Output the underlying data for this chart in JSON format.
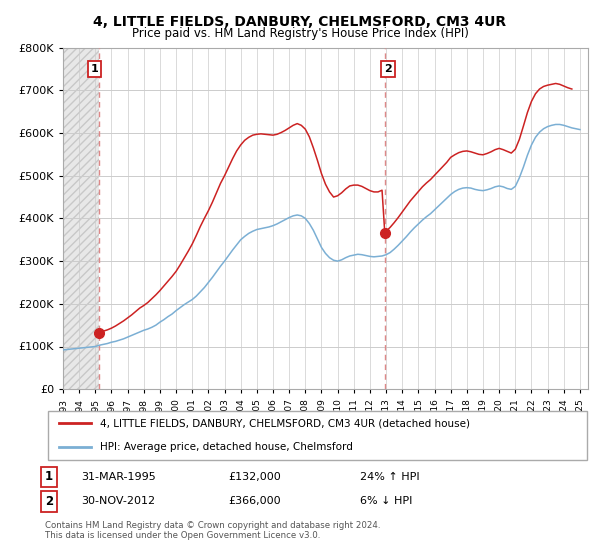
{
  "title": "4, LITTLE FIELDS, DANBURY, CHELMSFORD, CM3 4UR",
  "subtitle": "Price paid vs. HM Land Registry's House Price Index (HPI)",
  "ylim": [
    0,
    800000
  ],
  "yticks": [
    0,
    100000,
    200000,
    300000,
    400000,
    500000,
    600000,
    700000,
    800000
  ],
  "ytick_labels": [
    "£0",
    "£100K",
    "£200K",
    "£300K",
    "£400K",
    "£500K",
    "£600K",
    "£700K",
    "£800K"
  ],
  "hpi_color": "#7bafd4",
  "price_color": "#cc2222",
  "sale1_year": 1995.25,
  "sale1_price": 132000,
  "sale2_year": 2012.92,
  "sale2_price": 366000,
  "legend_price_label": "4, LITTLE FIELDS, DANBURY, CHELMSFORD, CM3 4UR (detached house)",
  "legend_hpi_label": "HPI: Average price, detached house, Chelmsford",
  "footer": "Contains HM Land Registry data © Crown copyright and database right 2024.\nThis data is licensed under the Open Government Licence v3.0.",
  "grid_color": "#cccccc",
  "vline_color": "#dd8888",
  "hatch_color": "#c8c8c8",
  "xlim_start": 1993,
  "xlim_end": 2025.5,
  "hpi_years": [
    1993.0,
    1993.25,
    1993.5,
    1993.75,
    1994.0,
    1994.25,
    1994.5,
    1994.75,
    1995.0,
    1995.25,
    1995.5,
    1995.75,
    1996.0,
    1996.25,
    1996.5,
    1996.75,
    1997.0,
    1997.25,
    1997.5,
    1997.75,
    1998.0,
    1998.25,
    1998.5,
    1998.75,
    1999.0,
    1999.25,
    1999.5,
    1999.75,
    2000.0,
    2000.25,
    2000.5,
    2000.75,
    2001.0,
    2001.25,
    2001.5,
    2001.75,
    2002.0,
    2002.25,
    2002.5,
    2002.75,
    2003.0,
    2003.25,
    2003.5,
    2003.75,
    2004.0,
    2004.25,
    2004.5,
    2004.75,
    2005.0,
    2005.25,
    2005.5,
    2005.75,
    2006.0,
    2006.25,
    2006.5,
    2006.75,
    2007.0,
    2007.25,
    2007.5,
    2007.75,
    2008.0,
    2008.25,
    2008.5,
    2008.75,
    2009.0,
    2009.25,
    2009.5,
    2009.75,
    2010.0,
    2010.25,
    2010.5,
    2010.75,
    2011.0,
    2011.25,
    2011.5,
    2011.75,
    2012.0,
    2012.25,
    2012.5,
    2012.75,
    2013.0,
    2013.25,
    2013.5,
    2013.75,
    2014.0,
    2014.25,
    2014.5,
    2014.75,
    2015.0,
    2015.25,
    2015.5,
    2015.75,
    2016.0,
    2016.25,
    2016.5,
    2016.75,
    2017.0,
    2017.25,
    2017.5,
    2017.75,
    2018.0,
    2018.25,
    2018.5,
    2018.75,
    2019.0,
    2019.25,
    2019.5,
    2019.75,
    2020.0,
    2020.25,
    2020.5,
    2020.75,
    2021.0,
    2021.25,
    2021.5,
    2021.75,
    2022.0,
    2022.25,
    2022.5,
    2022.75,
    2023.0,
    2023.25,
    2023.5,
    2023.75,
    2024.0,
    2024.25,
    2024.5,
    2024.75,
    2025.0
  ],
  "hpi_values": [
    92000,
    93000,
    94000,
    95000,
    96000,
    97000,
    98000,
    99000,
    100000,
    103000,
    105000,
    107000,
    110000,
    112000,
    115000,
    118000,
    122000,
    126000,
    130000,
    134000,
    138000,
    141000,
    145000,
    150000,
    157000,
    163000,
    170000,
    176000,
    184000,
    191000,
    198000,
    204000,
    210000,
    218000,
    228000,
    238000,
    250000,
    262000,
    275000,
    288000,
    300000,
    313000,
    326000,
    338000,
    350000,
    358000,
    365000,
    370000,
    374000,
    376000,
    378000,
    380000,
    383000,
    387000,
    392000,
    397000,
    402000,
    406000,
    408000,
    406000,
    400000,
    388000,
    372000,
    352000,
    332000,
    318000,
    308000,
    302000,
    300000,
    303000,
    308000,
    312000,
    314000,
    316000,
    315000,
    313000,
    311000,
    310000,
    311000,
    312000,
    315000,
    320000,
    328000,
    337000,
    347000,
    357000,
    368000,
    378000,
    387000,
    396000,
    404000,
    411000,
    420000,
    429000,
    438000,
    447000,
    456000,
    463000,
    468000,
    471000,
    472000,
    471000,
    468000,
    466000,
    465000,
    467000,
    470000,
    474000,
    476000,
    474000,
    470000,
    468000,
    475000,
    495000,
    520000,
    548000,
    572000,
    590000,
    602000,
    610000,
    615000,
    618000,
    620000,
    620000,
    618000,
    615000,
    612000,
    610000,
    608000
  ],
  "price_years": [
    1995.25,
    1995.5,
    1995.75,
    1996.0,
    1996.25,
    1996.5,
    1996.75,
    1997.0,
    1997.25,
    1997.5,
    1997.75,
    1998.0,
    1998.25,
    1998.5,
    1998.75,
    1999.0,
    1999.25,
    1999.5,
    1999.75,
    2000.0,
    2000.25,
    2000.5,
    2000.75,
    2001.0,
    2001.25,
    2001.5,
    2001.75,
    2002.0,
    2002.25,
    2002.5,
    2002.75,
    2003.0,
    2003.25,
    2003.5,
    2003.75,
    2004.0,
    2004.25,
    2004.5,
    2004.75,
    2005.0,
    2005.25,
    2005.5,
    2005.75,
    2006.0,
    2006.25,
    2006.5,
    2006.75,
    2007.0,
    2007.25,
    2007.5,
    2007.75,
    2008.0,
    2008.25,
    2008.5,
    2008.75,
    2009.0,
    2009.25,
    2009.5,
    2009.75,
    2010.0,
    2010.25,
    2010.5,
    2010.75,
    2011.0,
    2011.25,
    2011.5,
    2011.75,
    2012.0,
    2012.25,
    2012.5,
    2012.75,
    2012.92
  ],
  "price_values": [
    132000,
    136000,
    139000,
    143000,
    148000,
    154000,
    160000,
    167000,
    174000,
    182000,
    190000,
    196000,
    203000,
    212000,
    221000,
    231000,
    242000,
    253000,
    264000,
    276000,
    291000,
    307000,
    323000,
    340000,
    360000,
    381000,
    400000,
    418000,
    438000,
    460000,
    482000,
    500000,
    520000,
    540000,
    558000,
    572000,
    583000,
    590000,
    595000,
    597000,
    598000,
    597000,
    596000,
    595000,
    597000,
    601000,
    606000,
    612000,
    618000,
    622000,
    618000,
    609000,
    591000,
    565000,
    536000,
    505000,
    480000,
    462000,
    450000,
    453000,
    460000,
    469000,
    476000,
    478000,
    478000,
    475000,
    470000,
    465000,
    462000,
    462000,
    466000,
    366000
  ],
  "price_years2": [
    2012.92,
    2013.0,
    2013.25,
    2013.5,
    2013.75,
    2014.0,
    2014.25,
    2014.5,
    2014.75,
    2015.0,
    2015.25,
    2015.5,
    2015.75,
    2016.0,
    2016.25,
    2016.5,
    2016.75,
    2017.0,
    2017.25,
    2017.5,
    2017.75,
    2018.0,
    2018.25,
    2018.5,
    2018.75,
    2019.0,
    2019.25,
    2019.5,
    2019.75,
    2020.0,
    2020.25,
    2020.5,
    2020.75,
    2021.0,
    2021.25,
    2021.5,
    2021.75,
    2022.0,
    2022.25,
    2022.5,
    2022.75,
    2023.0,
    2023.25,
    2023.5,
    2023.75,
    2024.0,
    2024.25,
    2024.5
  ],
  "price_values2": [
    366000,
    370000,
    379000,
    390000,
    402000,
    415000,
    428000,
    441000,
    452000,
    463000,
    474000,
    483000,
    491000,
    501000,
    511000,
    521000,
    531000,
    543000,
    549000,
    554000,
    557000,
    558000,
    556000,
    553000,
    550000,
    549000,
    552000,
    556000,
    561000,
    564000,
    561000,
    557000,
    553000,
    562000,
    585000,
    616000,
    648000,
    674000,
    692000,
    703000,
    709000,
    712000,
    714000,
    716000,
    714000,
    710000,
    706000,
    703000
  ]
}
